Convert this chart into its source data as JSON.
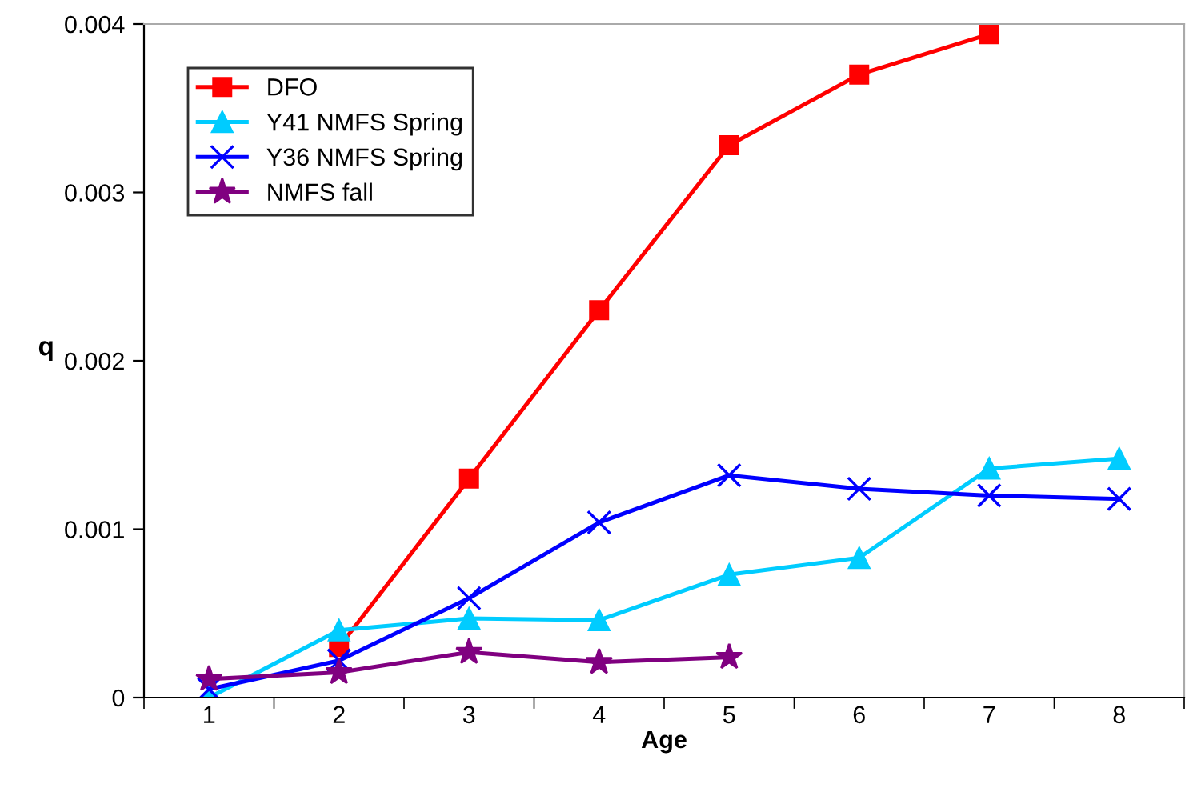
{
  "chart_data": {
    "type": "line",
    "xlabel": "Age",
    "ylabel": "q",
    "categories": [
      "1",
      "2",
      "3",
      "4",
      "5",
      "6",
      "7",
      "8"
    ],
    "ylim": [
      0,
      0.004
    ],
    "yticks": [
      0,
      0.001,
      0.002,
      0.003,
      0.004
    ],
    "grid": false,
    "legend": "top left",
    "series": [
      {
        "name": "DFO",
        "color": "#ff0000",
        "marker": "square",
        "values": [
          null,
          0.0003,
          0.0013,
          0.0023,
          0.00328,
          0.0037,
          0.00394,
          null
        ]
      },
      {
        "name": "Y41 NMFS Spring",
        "color": "#00ccff",
        "marker": "triangle",
        "values": [
          0,
          0.0004,
          0.00047,
          0.00046,
          0.00073,
          0.00083,
          0.00136,
          0.00142
        ]
      },
      {
        "name": "Y36 NMFS Spring",
        "color": "#0000ff",
        "marker": "cross",
        "values": [
          5e-05,
          0.00022,
          0.00059,
          0.00104,
          0.00132,
          0.00124,
          0.0012,
          0.00118
        ]
      },
      {
        "name": "NMFS fall",
        "color": "#800080",
        "marker": "star",
        "values": [
          0.00011,
          0.00015,
          0.00027,
          0.00021,
          0.00024,
          null,
          null,
          null
        ]
      }
    ]
  }
}
